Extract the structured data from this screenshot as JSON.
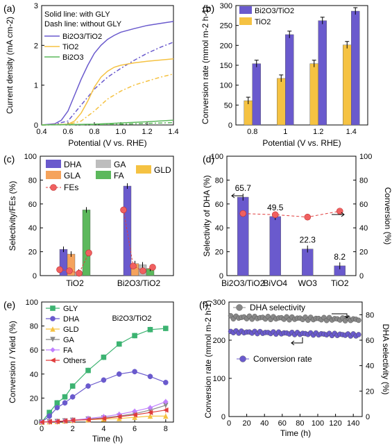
{
  "figure": {
    "panels": [
      {
        "label": "(a)",
        "chart_data": {
          "type": "line",
          "xlabel": "Potential (V vs. RHE)",
          "ylabel": "Current density (mA cm-2)",
          "xlim": [
            0.4,
            1.4
          ],
          "ylim": [
            0,
            3
          ],
          "xticks": [
            "0.4",
            "0.6",
            "0.8",
            "1.0",
            "1.2",
            "1.4"
          ],
          "yticks": [
            "0",
            "1",
            "2",
            "3"
          ],
          "annotations": [
            "Solid line: with GLY",
            "Dash line: without GLY"
          ],
          "legend": [
            "Bi2O3/TiO2",
            "TiO2",
            "Bi2O3"
          ],
          "series": [
            {
              "name": "Bi2O3/TiO2",
              "style": "solid",
              "color": "#6a5acd",
              "x": [
                0.4,
                0.5,
                0.55,
                0.6,
                0.65,
                0.7,
                0.75,
                0.8,
                0.85,
                0.9,
                0.95,
                1.0,
                1.1,
                1.2,
                1.3,
                1.4
              ],
              "y": [
                0.0,
                0.03,
                0.12,
                0.35,
                0.75,
                1.15,
                1.5,
                1.8,
                2.0,
                2.15,
                2.25,
                2.33,
                2.42,
                2.5,
                2.55,
                2.6
              ]
            },
            {
              "name": "Bi2O3/TiO2",
              "style": "dash",
              "color": "#6a5acd",
              "x": [
                0.4,
                0.5,
                0.6,
                0.7,
                0.8,
                0.9,
                1.0,
                1.1,
                1.2,
                1.3,
                1.4
              ],
              "y": [
                0.0,
                0.02,
                0.1,
                0.5,
                0.9,
                1.2,
                1.42,
                1.62,
                1.8,
                1.95,
                2.08
              ]
            },
            {
              "name": "TiO2",
              "style": "solid",
              "color": "#f5c242",
              "x": [
                0.4,
                0.6,
                0.65,
                0.7,
                0.75,
                0.8,
                0.85,
                0.9,
                0.95,
                1.0,
                1.1,
                1.2,
                1.3,
                1.4
              ],
              "y": [
                0.0,
                0.02,
                0.1,
                0.3,
                0.6,
                0.95,
                1.2,
                1.35,
                1.45,
                1.5,
                1.56,
                1.6,
                1.63,
                1.66
              ]
            },
            {
              "name": "TiO2",
              "style": "dash",
              "color": "#f5c242",
              "x": [
                0.4,
                0.6,
                0.7,
                0.8,
                0.9,
                1.0,
                1.1,
                1.2,
                1.3,
                1.4
              ],
              "y": [
                0.0,
                0.01,
                0.1,
                0.35,
                0.65,
                0.85,
                1.0,
                1.1,
                1.2,
                1.28
              ]
            },
            {
              "name": "Bi2O3",
              "style": "solid",
              "color": "#5cb85c",
              "x": [
                0.4,
                0.8,
                1.0,
                1.2,
                1.4
              ],
              "y": [
                0.0,
                0.02,
                0.05,
                0.08,
                0.12
              ]
            },
            {
              "name": "Bi2O3",
              "style": "dash",
              "color": "#5cb85c",
              "x": [
                0.4,
                0.8,
                1.0,
                1.2,
                1.4
              ],
              "y": [
                0.0,
                0.01,
                0.02,
                0.04,
                0.06
              ]
            }
          ]
        }
      },
      {
        "label": "(b)",
        "chart_data": {
          "type": "bar",
          "xlabel": "Potential (V vs. RHE)",
          "ylabel": "Conversion rate (mmol m-2 h-1)",
          "ylim": [
            0,
            300
          ],
          "yticks": [
            "0",
            "50",
            "100",
            "150",
            "200",
            "250",
            "300"
          ],
          "categories": [
            "0.8",
            "1",
            "1.2",
            "1.4"
          ],
          "legend": [
            "Bi2O3/TiO2",
            "TiO2"
          ],
          "series": [
            {
              "name": "TiO2",
              "color": "#f5c242",
              "values": [
                61,
                117,
                154,
                201
              ]
            },
            {
              "name": "Bi2O3/TiO2",
              "color": "#6a5acd",
              "values": [
                154,
                227,
                262,
                286
              ]
            }
          ]
        }
      },
      {
        "label": "(c)",
        "chart_data": {
          "type": "bar",
          "ylabel": "Selectivity/FEs (%)",
          "ylim": [
            0,
            100
          ],
          "yticks": [
            "0",
            "20",
            "40",
            "60",
            "80",
            "100"
          ],
          "categories": [
            "TiO2",
            "Bi2O3/TiO2"
          ],
          "legend": [
            "DHA",
            "GA",
            "GLD",
            "GLA",
            "FA",
            "FEs"
          ],
          "series": [
            {
              "name": "DHA",
              "color": "#6a5acd",
              "values": [
                22,
                75
              ]
            },
            {
              "name": "GLA",
              "color": "#f5a35c",
              "values": [
                18,
                10
              ]
            },
            {
              "name": "GA",
              "color": "#bdbdbd",
              "values": [
                3,
                9
              ]
            },
            {
              "name": "GLD",
              "color": "#f5c242",
              "values": [
                0,
                0
              ]
            },
            {
              "name": "FA",
              "color": "#5cb85c",
              "values": [
                55,
                6
              ]
            }
          ],
          "fes_points": [
            {
              "category": "TiO2",
              "values": [
                5,
                4,
                2,
                19
              ]
            },
            {
              "category": "Bi2O3/TiO2",
              "values": [
                55,
                8,
                4,
                7
              ]
            }
          ]
        }
      },
      {
        "label": "(d)",
        "chart_data": {
          "type": "bar",
          "ylabel": "Selectivity of DHA (%)",
          "y2label": "Conversion (%)",
          "ylim": [
            0,
            100
          ],
          "yticks": [
            "0",
            "20",
            "40",
            "60",
            "80",
            "100"
          ],
          "categories": [
            "Bi2O3/TiO2",
            "BiVO4",
            "WO3",
            "TiO2"
          ],
          "series": [
            {
              "name": "Selectivity of DHA",
              "color": "#6a5acd",
              "values": [
                65.7,
                49.5,
                22.3,
                8.2
              ]
            },
            {
              "name": "Conversion",
              "color": "#e03c3c",
              "values": [
                52,
                51,
                49,
                54
              ]
            }
          ],
          "data_labels": [
            "65.7",
            "49.5",
            "22.3",
            "8.2"
          ]
        }
      },
      {
        "label": "(e)",
        "chart_data": {
          "type": "line",
          "xlabel": "Time (h)",
          "ylabel": "Conversion / Yield (%)",
          "annotation": "Bi2O3/TiO2",
          "xlim": [
            0,
            8.5
          ],
          "ylim": [
            0,
            100
          ],
          "xticks": [
            "0",
            "2",
            "4",
            "6",
            "8"
          ],
          "yticks": [
            "0",
            "20",
            "40",
            "60",
            "80",
            "100"
          ],
          "legend": [
            "GLY",
            "DHA",
            "GLD",
            "GA",
            "FA",
            "Others"
          ],
          "x": [
            0,
            0.5,
            1,
            1.5,
            2,
            3,
            4,
            5,
            6,
            7,
            8
          ],
          "series": [
            {
              "name": "GLY",
              "color": "#3cb371",
              "marker": "square",
              "values": [
                0,
                8,
                16,
                21,
                30,
                43,
                54,
                65,
                72,
                77,
                78
              ]
            },
            {
              "name": "DHA",
              "color": "#6a5acd",
              "marker": "circle",
              "values": [
                0,
                5,
                12,
                16,
                21,
                30,
                35,
                40,
                42,
                38,
                33
              ]
            },
            {
              "name": "GLD",
              "color": "#f5c242",
              "marker": "triangle",
              "values": [
                0,
                0.3,
                0.5,
                1,
                1.5,
                2,
                2.5,
                3,
                4,
                5,
                5
              ]
            },
            {
              "name": "GA",
              "color": "#888888",
              "marker": "triangle-down",
              "values": [
                0,
                0.3,
                0.5,
                1,
                1.5,
                2.5,
                3.5,
                5,
                7,
                10,
                14
              ]
            },
            {
              "name": "FA",
              "color": "#c080ff",
              "marker": "diamond",
              "values": [
                0,
                0.3,
                0.5,
                1,
                1.5,
                3,
                4.5,
                6.5,
                9,
                12,
                17
              ]
            },
            {
              "name": "Others",
              "color": "#e03c3c",
              "marker": "triangle-left",
              "values": [
                0,
                0.3,
                0.5,
                1,
                1.5,
                2,
                3,
                4.5,
                6,
                8,
                10
              ]
            }
          ]
        }
      },
      {
        "label": "(f)",
        "chart_data": {
          "type": "line",
          "xlabel": "Time (h)",
          "ylabel": "Conversion rate (mmol m-2 h-1)",
          "y2label": "DHA selectivity (%)",
          "xlim": [
            0,
            150
          ],
          "ylim": [
            0,
            300
          ],
          "y2lim": [
            0,
            90
          ],
          "xticks": [
            "0",
            "20",
            "40",
            "60",
            "80",
            "100",
            "120",
            "140"
          ],
          "yticks": [
            "0",
            "100",
            "200",
            "300"
          ],
          "y2ticks": [
            "0",
            "20",
            "40",
            "60",
            "80"
          ],
          "legend": [
            "DHA selectivity",
            "Conversion rate"
          ],
          "series": [
            {
              "name": "DHA selectivity",
              "axis": "right",
              "color": "#888888",
              "mean": 78,
              "amplitude": 1.2,
              "slope": -0.012
            },
            {
              "name": "Conversion rate",
              "axis": "left",
              "color": "#6a5acd",
              "mean": 222,
              "amplitude": 3,
              "slope": -0.06
            }
          ]
        }
      }
    ]
  }
}
